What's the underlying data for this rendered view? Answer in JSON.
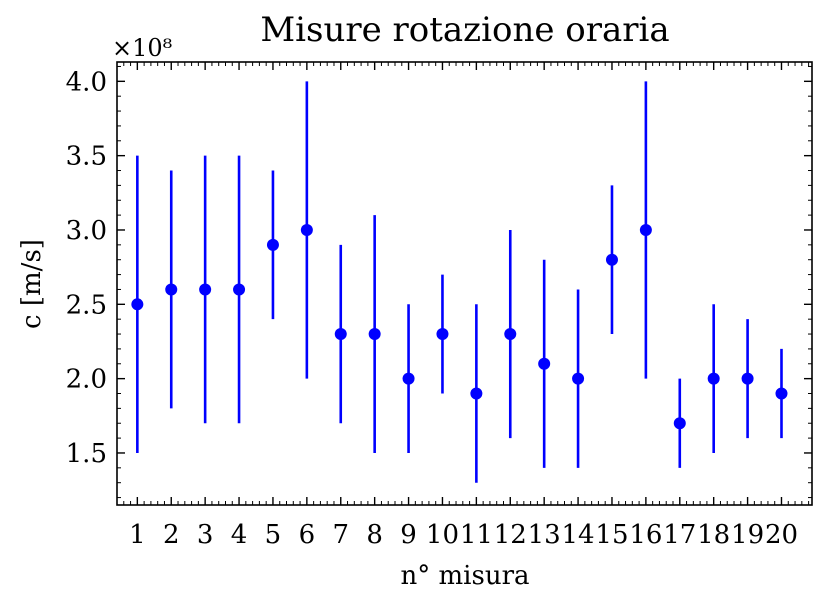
{
  "chart_data": {
    "type": "scatter",
    "title": "Misure rotazione oraria",
    "xlabel": "n° misura",
    "ylabel": "c [m/s]",
    "y_offset_label": "×10⁸",
    "x_ticks": [
      "1",
      "2",
      "3",
      "4",
      "5",
      "6",
      "7",
      "8",
      "9",
      "10",
      "11",
      "12",
      "13",
      "14",
      "15",
      "16",
      "17",
      "18",
      "19",
      "20"
    ],
    "y_ticks": [
      "1.5",
      "2.0",
      "2.5",
      "3.0",
      "3.5",
      "4.0"
    ],
    "y_tick_values": [
      1.5,
      2.0,
      2.5,
      3.0,
      3.5,
      4.0
    ],
    "xlim": [
      0.4,
      20.9
    ],
    "ylim": [
      1.15,
      4.13
    ],
    "grid": false,
    "color": "#0000ff",
    "series": [
      {
        "x": [
          1,
          2,
          3,
          4,
          5,
          6,
          7,
          8,
          9,
          10,
          11,
          12,
          13,
          14,
          15,
          16,
          17,
          18,
          19,
          20
        ],
        "y": [
          2.5,
          2.6,
          2.6,
          2.6,
          2.9,
          3.0,
          2.3,
          2.3,
          2.0,
          2.3,
          1.9,
          2.3,
          2.1,
          2.0,
          2.8,
          3.0,
          1.7,
          2.0,
          2.0,
          1.9
        ],
        "yerr": [
          1.0,
          0.8,
          0.9,
          0.9,
          0.5,
          1.0,
          0.6,
          0.8,
          0.5,
          0.4,
          0.6,
          0.7,
          0.7,
          0.6,
          0.5,
          1.0,
          0.3,
          0.5,
          0.4,
          0.3
        ]
      }
    ]
  }
}
